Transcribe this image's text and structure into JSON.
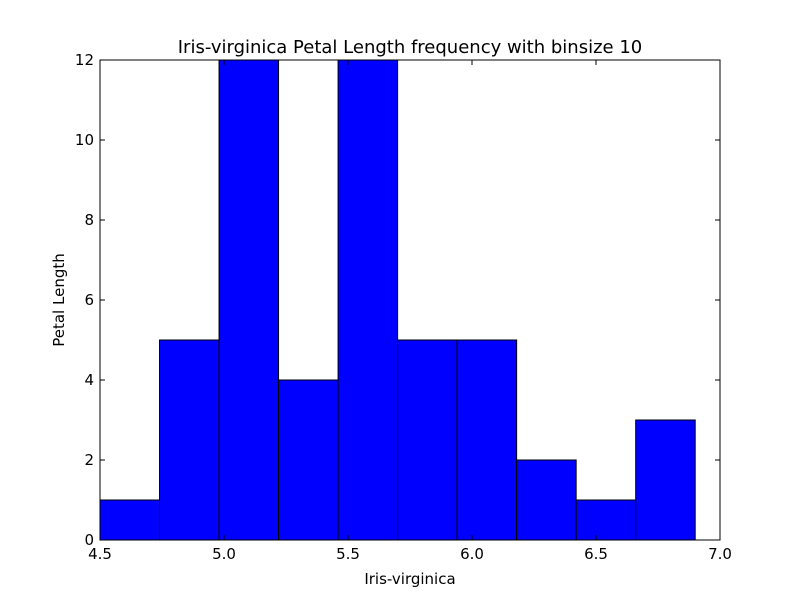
{
  "chart_data": {
    "type": "bar",
    "title": "Iris-virginica Petal Length frequency with binsize 10",
    "xlabel": "Iris-virginica",
    "ylabel": "Petal Length",
    "xlim": [
      4.5,
      7.0
    ],
    "ylim": [
      0,
      12
    ],
    "xticks": [
      "4.5",
      "5.0",
      "5.5",
      "6.0",
      "6.5",
      "7.0"
    ],
    "yticks": [
      "0",
      "2",
      "4",
      "6",
      "8",
      "10",
      "12"
    ],
    "bin_edges": [
      4.5,
      4.74,
      4.98,
      5.22,
      5.46,
      5.7,
      5.94,
      6.18,
      6.42,
      6.66,
      6.9
    ],
    "values": [
      1,
      5,
      12,
      4,
      12,
      5,
      5,
      2,
      1,
      3
    ],
    "bar_color": "#0000ff",
    "edge_color": "#000000",
    "grid": false,
    "legend": "none"
  }
}
